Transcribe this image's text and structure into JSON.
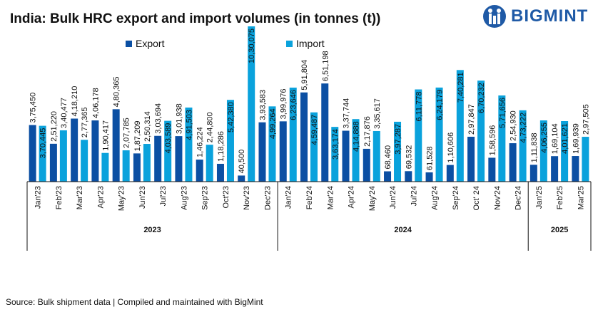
{
  "title": "India: Bulk HRC export and import volumes (in tonnes (t))",
  "logo": "BIGMINT",
  "source": "Source: Bulk shipment data | Compiled and maintained with BigMint",
  "colors": {
    "export": "#0b4fa3",
    "import": "#0aa2dc"
  },
  "chart_data": {
    "type": "bar",
    "title": "India: Bulk HRC export and import volumes (in tonnes (t))",
    "legend_position": "top",
    "categories": [
      "Jan'23",
      "Feb'23",
      "Mar'23",
      "Apr'23",
      "May'23",
      "Jun'23",
      "Jul'23",
      "Aug'23",
      "Sep'23",
      "Oct'23",
      "Nov'23",
      "Dec'23",
      "Jan'24",
      "Feb'24",
      "Mar'24",
      "Apr'24",
      "May'24",
      "Jun'24",
      "Jul'24",
      "Aug'24",
      "Sep'24",
      "Oct' 24",
      "Nov'24",
      "Dec'24",
      "Jan'25",
      "Feb'25",
      "Mar'25"
    ],
    "years": [
      {
        "label": "2023",
        "count": 12
      },
      {
        "label": "2024",
        "count": 12
      },
      {
        "label": "2025",
        "count": 3
      }
    ],
    "series": [
      {
        "name": "Export",
        "values": [
          375450,
          251220,
          418210,
          406178,
          480365,
          187209,
          303694,
          301938,
          146224,
          118286,
          40500,
          393583,
          399976,
          591804,
          651198,
          337744,
          217876,
          68460,
          69532,
          61528,
          110606,
          297847,
          158596,
          254930,
          111838,
          169104,
          169939
        ],
        "labels": [
          "3,75,450",
          "2,51,220",
          "4,18,210",
          "4,06,178",
          "4,80,365",
          "1,87,209",
          "3,03,694",
          "3,01,938",
          "1,46,224",
          "1,18,286",
          "40,500",
          "3,93,583",
          "3,99,976",
          "5,91,804",
          "6,51,198",
          "3,37,744",
          "2,17,876",
          "68,460",
          "69,532",
          "61,528",
          "1,10,606",
          "2,97,847",
          "1,58,596",
          "2,54,930",
          "1,11,838",
          "1,69,104",
          "1,69,939"
        ]
      },
      {
        "name": "Import",
        "values": [
          370445,
          340477,
          277365,
          190417,
          207785,
          250314,
          403589,
          491503,
          244800,
          542380,
          1030075,
          499264,
          623646,
          459487,
          363174,
          414888,
          335617,
          397287,
          611778,
          624179,
          740281,
          670232,
          571656,
          473222,
          406255,
          401621,
          297505
        ],
        "labels": [
          "3,70,445",
          "3,40,477",
          "2,77,365",
          "1,90,417",
          "2,07,785",
          "2,50,314",
          "4,03,589",
          "4,91,503",
          "2,44,800",
          "5,42,380",
          "10,30,075",
          "4,99,264",
          "6,23,646",
          "4,59,487",
          "3,63,174",
          "4,14,888",
          "3,35,617",
          "3,97,287",
          "6,11,778",
          "6,24,179",
          "7,40,281",
          "6,70,232",
          "5,71,656",
          "4,73,222",
          "4,06,255",
          "4,01,621",
          "2,97,505"
        ]
      }
    ],
    "ylim": [
      0,
      1030075
    ],
    "grid": false
  }
}
